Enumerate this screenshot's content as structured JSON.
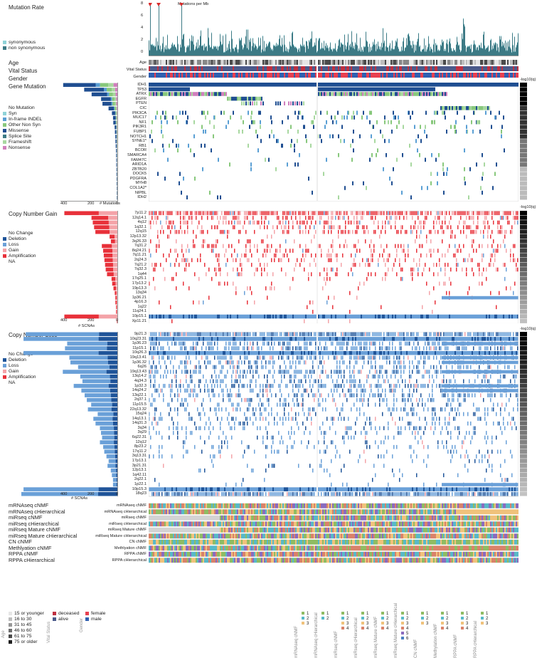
{
  "header": {
    "mutation_rate": "Mutation Rate",
    "mutations_per_mb": "Mutations per Mb"
  },
  "colors": {
    "nonsyn": "#3d7a85",
    "syn": "#8fd3d8",
    "deep": "#1f5499",
    "mid": "#6aa0d8",
    "light": "#c6dbef",
    "missense": "#1f4e91",
    "inframe": "#5a9fd4",
    "other": "#88c87c",
    "frameshift": "#a8d8a0",
    "nonsense": "#d07fbd",
    "splice": "#3d7a85",
    "red": "#e8313a",
    "pink": "#f4a3a8",
    "gray": "#c8c8c8",
    "track": [
      "#4a4a4a",
      "#888888",
      "#bdbdbd",
      "#e6e6e6",
      "#2b2b2b"
    ]
  },
  "mutation_rate": {
    "y_ticks": [
      "8",
      "6",
      "4",
      "2",
      "0"
    ],
    "ylim": [
      0,
      8
    ],
    "legend": [
      {
        "label": "synonymous",
        "color": "#8fd3d8"
      },
      {
        "label": "non synonymous",
        "color": "#3d7a85"
      }
    ],
    "highlight_markers": 3
  },
  "clinical": {
    "left": [
      "Age",
      "Vital Status",
      "Gender"
    ],
    "right": [
      "Age",
      "Vital Status",
      "Gender"
    ]
  },
  "gene_mutation": {
    "title": "Gene Mutation",
    "genes": [
      "IDH1",
      "TP53",
      "ATRX",
      "EGFR",
      "PTEN",
      "CIC",
      "PIK3CA",
      "MUC17",
      "NF1",
      "PIK3R1",
      "FUBP1",
      "NOTCH1",
      "SYNE1*",
      "RB1",
      "BCOR",
      "SMARCA4",
      "FAM47C",
      "ARID1A",
      "ZBTB20",
      "DOCK5",
      "PDGFRA",
      "MYH8",
      "COL1A2*",
      "NIPBL",
      "IDH2"
    ],
    "counts": [
      400,
      245,
      190,
      120,
      110,
      65,
      40,
      32,
      30,
      20,
      18,
      15,
      14,
      12,
      10,
      9,
      8,
      8,
      7,
      7,
      6,
      6,
      5,
      5,
      5
    ],
    "legend": [
      {
        "label": "No Mutation",
        "color": "#ffffff"
      },
      {
        "label": "Syn",
        "color": "#8fd3d8"
      },
      {
        "label": "In-frame INDEL",
        "color": "#5a9fd4"
      },
      {
        "label": "Other Non Syn",
        "color": "#88c87c"
      },
      {
        "label": "Missense",
        "color": "#1f4e91"
      },
      {
        "label": "Splice Site",
        "color": "#3d7a85"
      },
      {
        "label": "Frameshift",
        "color": "#a8d8a0"
      },
      {
        "label": "Nonsense",
        "color": "#d07fbd"
      }
    ],
    "axis_ticks": [
      "400",
      "200",
      "0"
    ],
    "axis_title": "# Mutations",
    "qlabel": "-log10(q)"
  },
  "cn_gain": {
    "title": "Copy Number Gain",
    "regions": [
      "7p11.2",
      "12q14.1",
      "4q12",
      "1q32.1",
      "12q15",
      "12p13.32",
      "3q26.33",
      "7q31.2",
      "8q24.21",
      "7q11.21",
      "2q24.3",
      "7q21.2",
      "7q32.3",
      "1q44",
      "17q25.1",
      "17p13.2",
      "19p13.3",
      "13q34",
      "1p36.21",
      "4p16.3",
      "1q22",
      "11q24.1",
      "10p15.1",
      "Xp11.21"
    ],
    "counts": [
      410,
      200,
      190,
      180,
      170,
      60,
      50,
      120,
      110,
      105,
      100,
      95,
      90,
      80,
      45,
      40,
      30,
      20,
      15,
      15,
      10,
      10,
      410,
      5
    ],
    "legend": [
      {
        "label": "No Change",
        "color": "#ffffff"
      },
      {
        "label": "Deletion",
        "color": "#1f5499"
      },
      {
        "label": "Loss",
        "color": "#6aa0d8"
      },
      {
        "label": "Gain",
        "color": "#f4a3a8"
      },
      {
        "label": "Amplification",
        "color": "#e8313a"
      },
      {
        "label": "NA",
        "color": "#ffffff"
      }
    ],
    "axis_ticks": [
      "400",
      "200",
      "0"
    ],
    "axis_title": "# SCNAs",
    "qlabel": "-log10(q)"
  },
  "cn_loss": {
    "title": "Copy Number Loss",
    "regions": [
      "9p21.3",
      "10q23.31",
      "1p36.23",
      "11p15.1",
      "10q26.3",
      "19q13.41",
      "1p36.32",
      "6q26",
      "19q13.43",
      "13q14.2",
      "4q34.3",
      "1p32.3",
      "14q24.2",
      "13q22.1",
      "2q37.1",
      "11p15.5",
      "22q13.32",
      "15q24",
      "14q13.1",
      "14q31.3",
      "3q34",
      "3q29",
      "6q22.31",
      "12q12",
      "8p23.2",
      "17q11.2",
      "3q13.31",
      "17p13.1",
      "3p21.31",
      "12p13.1",
      "1q42.11",
      "2q22.1",
      "1p22.1",
      "10p15.3",
      "18q23"
    ],
    "counts": [
      420,
      430,
      230,
      240,
      430,
      220,
      215,
      180,
      250,
      170,
      160,
      200,
      165,
      150,
      140,
      120,
      135,
      90,
      110,
      100,
      80,
      75,
      70,
      80,
      65,
      60,
      50,
      40,
      45,
      30,
      25,
      20,
      20,
      430,
      440
    ],
    "legend": [
      {
        "label": "No Change",
        "color": "#ffffff"
      },
      {
        "label": "Deletion",
        "color": "#1f5499"
      },
      {
        "label": "Loss",
        "color": "#6aa0d8"
      },
      {
        "label": "Gain",
        "color": "#f4a3a8"
      },
      {
        "label": "Amplification",
        "color": "#e8313a"
      },
      {
        "label": "NA",
        "color": "#ffffff"
      }
    ],
    "axis_ticks": [
      "400",
      "200",
      "0"
    ],
    "axis_title": "# SCNAs",
    "qlabel": "-log10(q)"
  },
  "clusters": {
    "left": [
      "mRNAseq cNMF",
      "mRNAseq cHierarchical",
      "miRseq cNMF",
      "miRseq cHierarchical",
      "miRseq Mature cNMF",
      "miRseq Mature cHierarchical",
      "CN cNMF",
      "Methlyation cNMF",
      "RPPA cNMF",
      "RPPA cHierarchical"
    ],
    "right": [
      "mRNAseq cNMF",
      "mRNAseq cHierarchical",
      "miRseq cNMF",
      "miRseq cHierarchical",
      "miRseq Mature cNMF",
      "miRseq Mature cHierarchical",
      "CN cNMF",
      "Methlyation cNMF",
      "RPPA cNMF",
      "RPPA cHierarchical"
    ],
    "palette": [
      "#8fbc63",
      "#58b9c8",
      "#f0c27b",
      "#d9826a",
      "#8a6bbf",
      "#4a7fc1",
      "#d3d3d3"
    ]
  },
  "legend_bottom": {
    "age_title": "Age",
    "age": [
      {
        "label": "15 or younger",
        "color": "#e6e6e6"
      },
      {
        "label": "16 to 30",
        "color": "#bdbdbd"
      },
      {
        "label": "31 to 45",
        "color": "#969696"
      },
      {
        "label": "46 to 60",
        "color": "#6e6e6e"
      },
      {
        "label": "61 to 75",
        "color": "#4a4a4a"
      },
      {
        "label": "75 or older",
        "color": "#1e1e1e"
      }
    ],
    "vital_title": "Vital Status",
    "vital": [
      {
        "label": "deceased",
        "color": "#c03040"
      },
      {
        "label": "alive",
        "color": "#4a5a8a"
      }
    ],
    "gender_title": "Gender",
    "gender": [
      {
        "label": "female",
        "color": "#e84050"
      },
      {
        "label": "male",
        "color": "#3060b0"
      }
    ],
    "cluster_keys": [
      {
        "name": "mRNAseq cNMF",
        "items": [
          "1",
          "2",
          "3"
        ]
      },
      {
        "name": "mRNAseq cHierarchical",
        "items": [
          "1",
          "2"
        ]
      },
      {
        "name": "miRseq cNMF",
        "items": [
          "1",
          "2",
          "3",
          "4"
        ]
      },
      {
        "name": "miRseq cHierarchical",
        "items": [
          "1",
          "2",
          "3",
          "4"
        ]
      },
      {
        "name": "miRseq Mature cNMF",
        "items": [
          "1",
          "2",
          "3",
          "4"
        ]
      },
      {
        "name": "miRseq Mature cHierarchical",
        "items": [
          "1",
          "2",
          "3",
          "4",
          "5",
          "6"
        ]
      },
      {
        "name": "CN cNMF",
        "items": [
          "1",
          "2",
          "3"
        ]
      },
      {
        "name": "Methylation cNMF",
        "items": [
          "1",
          "2",
          "3",
          "4"
        ]
      },
      {
        "name": "RPPA cNMF",
        "items": [
          "1",
          "2",
          "3",
          "4"
        ]
      },
      {
        "name": "RPPA cHierarchical",
        "items": [
          "1",
          "2",
          "3"
        ]
      }
    ]
  },
  "chart_data": [
    {
      "type": "bar",
      "title": "Mutation Rate",
      "ylabel": "Mutations per Mb",
      "ylim": [
        0,
        8
      ]
    },
    {
      "type": "heatmap",
      "title": "Gene Mutation",
      "rows": [
        "IDH1",
        "TP53",
        "ATRX",
        "EGFR",
        "PTEN",
        "CIC",
        "PIK3CA",
        "MUC17",
        "NF1",
        "PIK3R1",
        "FUBP1",
        "NOTCH1",
        "SYNE1*",
        "RB1",
        "BCOR",
        "SMARCA4",
        "FAM47C",
        "ARID1A",
        "ZBTB20",
        "DOCK5",
        "PDGFRA",
        "MYH8",
        "COL1A2*",
        "NIPBL",
        "IDH2"
      ],
      "xlabel": "# Mutations"
    },
    {
      "type": "heatmap",
      "title": "Copy Number Gain",
      "xlabel": "# SCNAs"
    },
    {
      "type": "heatmap",
      "title": "Copy Number Loss",
      "xlabel": "# SCNAs"
    }
  ]
}
